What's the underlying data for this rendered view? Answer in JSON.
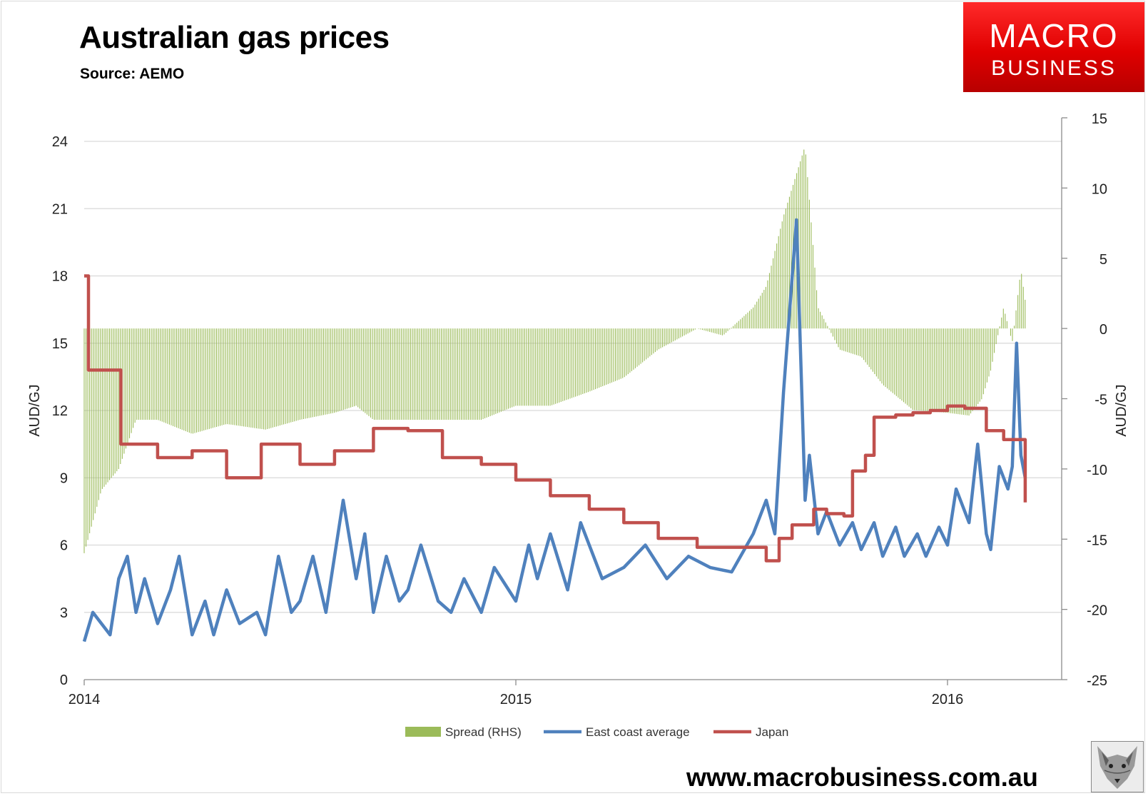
{
  "header": {
    "title": "Australian gas prices",
    "source": "Source: AEMO"
  },
  "logo": {
    "line1": "MACRO",
    "line2": "BUSINESS"
  },
  "footer": {
    "website": "www.macrobusiness.com.au"
  },
  "colors": {
    "spread": "#9bbb59",
    "east_coast": "#4f81bd",
    "japan": "#c0504d",
    "grid": "#d9d9d9"
  },
  "chart_data": {
    "type": "line",
    "title": "Australian gas prices",
    "subtitle": "Source: AEMO",
    "xlabel": "",
    "ylabel": "AUD/GJ",
    "y2label": "AUD/GJ",
    "x_ticks": [
      "2014",
      "2015",
      "2016"
    ],
    "x_range": [
      2014.0,
      2016.3
    ],
    "ylim": [
      0,
      24
    ],
    "y_ticks": [
      "0",
      "3",
      "6",
      "9",
      "12",
      "15",
      "18",
      "21",
      "24"
    ],
    "y2lim": [
      -25,
      15
    ],
    "y2_ticks": [
      "-25",
      "-20",
      "-15",
      "-10",
      "-5",
      "0",
      "5",
      "10",
      "15"
    ],
    "grid": true,
    "legend_position": "bottom",
    "series": [
      {
        "name": "Spread (RHS)",
        "kind": "bar",
        "axis": "right",
        "x": [
          2014.0,
          2014.04,
          2014.08,
          2014.12,
          2014.17,
          2014.25,
          2014.33,
          2014.42,
          2014.5,
          2014.58,
          2014.63,
          2014.67,
          2014.75,
          2014.83,
          2014.92,
          2015.0,
          2015.08,
          2015.17,
          2015.25,
          2015.33,
          2015.42,
          2015.48,
          2015.55,
          2015.58,
          2015.62,
          2015.67,
          2015.7,
          2015.75,
          2015.8,
          2015.85,
          2015.92,
          2016.0,
          2016.05,
          2016.08,
          2016.1,
          2016.13,
          2016.15,
          2016.17,
          2016.18
        ],
        "values": [
          -16,
          -11.5,
          -10,
          -6.5,
          -6.5,
          -7.5,
          -6.8,
          -7.2,
          -6.5,
          -6,
          -5.5,
          -6.5,
          -6.5,
          -6.5,
          -6.5,
          -5.5,
          -5.5,
          -4.5,
          -3.5,
          -1.5,
          0,
          -0.5,
          1.5,
          3,
          8,
          13,
          1.5,
          -1.5,
          -2,
          -4,
          -5.8,
          -6,
          -6.2,
          -5,
          -3,
          1.5,
          -1,
          4.2,
          2
        ],
        "labels": []
      },
      {
        "name": "East coast average",
        "kind": "line",
        "axis": "left",
        "x": [
          2014.0,
          2014.02,
          2014.04,
          2014.06,
          2014.08,
          2014.1,
          2014.12,
          2014.14,
          2014.17,
          2014.2,
          2014.22,
          2014.25,
          2014.28,
          2014.3,
          2014.33,
          2014.36,
          2014.4,
          2014.42,
          2014.45,
          2014.48,
          2014.5,
          2014.53,
          2014.56,
          2014.6,
          2014.63,
          2014.65,
          2014.67,
          2014.7,
          2014.73,
          2014.75,
          2014.78,
          2014.82,
          2014.85,
          2014.88,
          2014.92,
          2014.95,
          2015.0,
          2015.03,
          2015.05,
          2015.08,
          2015.12,
          2015.15,
          2015.2,
          2015.25,
          2015.3,
          2015.35,
          2015.4,
          2015.45,
          2015.5,
          2015.55,
          2015.58,
          2015.6,
          2015.62,
          2015.65,
          2015.67,
          2015.68,
          2015.7,
          2015.72,
          2015.75,
          2015.78,
          2015.8,
          2015.83,
          2015.85,
          2015.88,
          2015.9,
          2015.93,
          2015.95,
          2015.98,
          2016.0,
          2016.02,
          2016.05,
          2016.07,
          2016.09,
          2016.1,
          2016.12,
          2016.14,
          2016.15,
          2016.16,
          2016.17,
          2016.18
        ],
        "values": [
          1.7,
          3.0,
          2.5,
          2.0,
          4.5,
          5.5,
          3.0,
          4.5,
          2.5,
          4.0,
          5.5,
          2.0,
          3.5,
          2.0,
          4.0,
          2.5,
          3.0,
          2.0,
          5.5,
          3.0,
          3.5,
          5.5,
          3.0,
          8.0,
          4.5,
          6.5,
          3.0,
          5.5,
          3.5,
          4.0,
          6.0,
          3.5,
          3.0,
          4.5,
          3.0,
          5.0,
          3.5,
          6.0,
          4.5,
          6.5,
          4.0,
          7.0,
          4.5,
          5.0,
          6.0,
          4.5,
          5.5,
          5.0,
          4.8,
          6.5,
          8.0,
          6.5,
          12.8,
          20.5,
          8.0,
          10.0,
          6.5,
          7.5,
          6.0,
          7.0,
          5.8,
          7.0,
          5.5,
          6.8,
          5.5,
          6.5,
          5.5,
          6.8,
          6.0,
          8.5,
          7.0,
          10.5,
          6.5,
          5.8,
          9.5,
          8.5,
          9.5,
          15.0,
          10.0,
          9.0
        ],
        "labels": []
      },
      {
        "name": "Japan",
        "kind": "step",
        "axis": "left",
        "x": [
          2014.0,
          2014.01,
          2014.085,
          2014.17,
          2014.25,
          2014.33,
          2014.41,
          2014.5,
          2014.58,
          2014.67,
          2014.75,
          2014.83,
          2014.92,
          2015.0,
          2015.08,
          2015.17,
          2015.25,
          2015.33,
          2015.42,
          2015.5,
          2015.58,
          2015.61,
          2015.64,
          2015.69,
          2015.72,
          2015.76,
          2015.78,
          2015.81,
          2015.83,
          2015.88,
          2015.92,
          2015.96,
          2016.0,
          2016.04,
          2016.09,
          2016.13,
          2016.16,
          2016.18
        ],
        "values": [
          18.0,
          13.8,
          10.5,
          9.9,
          10.2,
          9.0,
          10.5,
          9.6,
          10.2,
          11.2,
          11.1,
          9.9,
          9.6,
          8.9,
          8.2,
          7.6,
          7.0,
          6.3,
          5.9,
          5.9,
          5.3,
          6.3,
          6.9,
          7.6,
          7.4,
          7.3,
          9.3,
          10.0,
          11.7,
          11.8,
          11.9,
          12.0,
          12.2,
          12.1,
          11.1,
          10.7,
          10.7,
          7.9
        ],
        "labels": []
      }
    ]
  }
}
